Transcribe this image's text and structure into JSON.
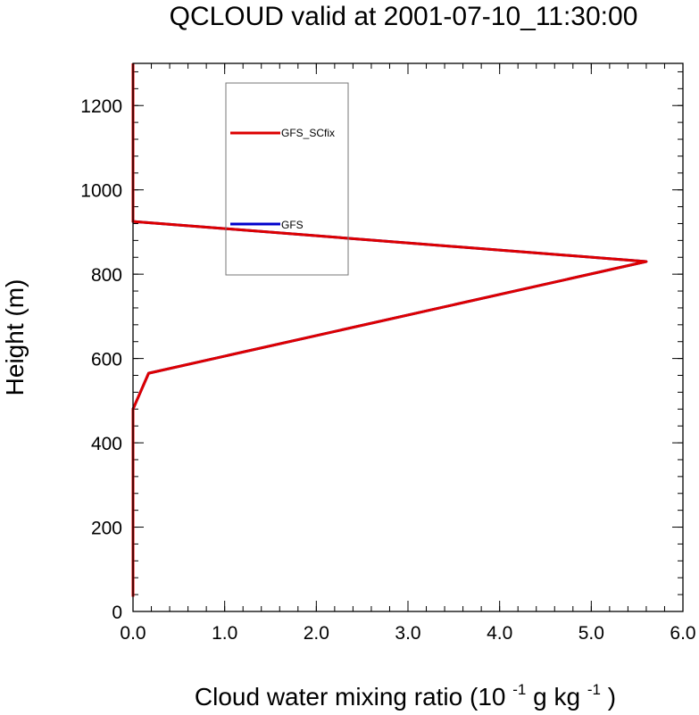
{
  "chart_data": {
    "type": "line",
    "title": "QCLOUD valid at 2001-07-10_11:30:00",
    "xlabel": "Cloud water mixing ratio (10",
    "xlabel_parts": {
      "pre": "Cloud water mixing ratio (10",
      "exp1": "-1",
      "mid": " g kg",
      "exp2": "-1",
      "post": ")"
    },
    "ylabel": "Height (m)",
    "xlim": [
      0,
      6
    ],
    "ylim": [
      0,
      1300
    ],
    "x_ticks": [
      "0.0",
      "1.0",
      "2.0",
      "3.0",
      "4.0",
      "5.0",
      "6.0"
    ],
    "y_ticks": [
      "0",
      "200",
      "400",
      "600",
      "800",
      "1000",
      "1200"
    ],
    "x_minor_step": 0.2,
    "y_minor_step": 40,
    "grid": false,
    "legend_position": "upper-left-inside",
    "series": [
      {
        "name": "GFS",
        "color": "#0000cc",
        "x": [
          0.0,
          0.0,
          0.0,
          0.17,
          5.6,
          0.0,
          0.0
        ],
        "y": [
          35,
          200,
          480,
          565,
          830,
          925,
          1300
        ]
      },
      {
        "name": "GFS_SCfix",
        "color": "#dd0000",
        "x": [
          0.0,
          0.0,
          0.0,
          0.17,
          5.6,
          0.0,
          0.0
        ],
        "y": [
          35,
          200,
          480,
          565,
          830,
          925,
          1300
        ]
      }
    ],
    "legend_order": [
      "GFS_SCfix",
      "GFS"
    ]
  }
}
